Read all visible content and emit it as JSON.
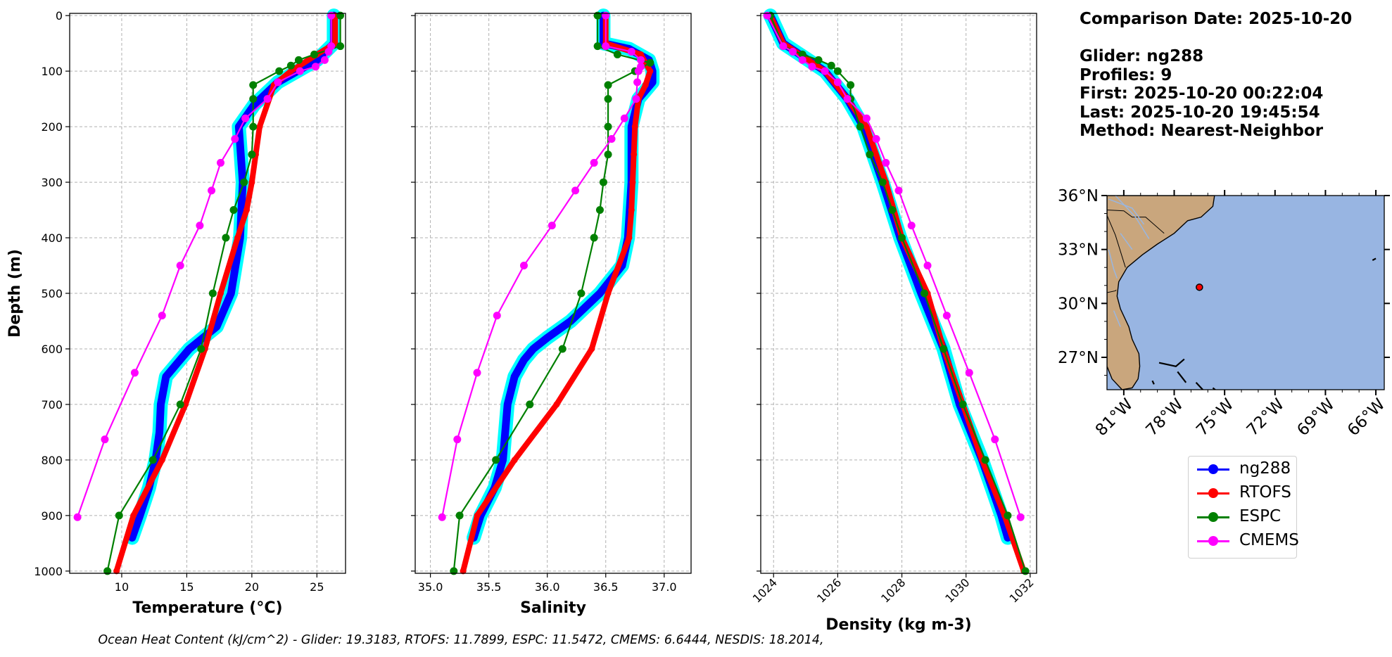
{
  "chart_data": [
    {
      "type": "line",
      "ylabel": "Depth (m)",
      "xlabel": "Temperature (°C)",
      "xlim": [
        6.0,
        27.2
      ],
      "ylim": [
        1000,
        0
      ],
      "xticks": [
        10,
        15,
        20,
        25
      ],
      "yticks": [
        0,
        100,
        200,
        300,
        400,
        500,
        600,
        700,
        800,
        900,
        1000
      ],
      "grid": true,
      "series": [
        {
          "name": "ng288",
          "color": "#0000ff",
          "y": [
            0,
            50,
            80,
            120,
            160,
            200,
            300,
            400,
            500,
            560,
            600,
            650,
            700,
            750,
            800,
            850,
            900,
            940
          ],
          "x": [
            26.3,
            26.3,
            25.0,
            22.0,
            20.2,
            19.0,
            19.3,
            19.1,
            18.4,
            17.3,
            15.2,
            13.4,
            13.0,
            12.9,
            12.6,
            12.1,
            11.4,
            10.8
          ]
        },
        {
          "name": "RTOFS",
          "color": "#ff0000",
          "y": [
            0,
            50,
            70,
            100,
            125,
            200,
            250,
            300,
            350,
            400,
            500,
            600,
            700,
            800,
            900,
            1000
          ],
          "x": [
            26.4,
            26.4,
            25.0,
            23.0,
            21.7,
            20.6,
            20.3,
            20.0,
            19.6,
            18.9,
            17.6,
            16.4,
            14.9,
            13.1,
            10.9,
            9.6
          ]
        },
        {
          "name": "ESPC",
          "color": "#008000",
          "y": [
            0,
            55,
            70,
            80,
            90,
            100,
            125,
            150,
            200,
            250,
            300,
            350,
            400,
            500,
            600,
            700,
            800,
            900,
            1000
          ],
          "x": [
            26.8,
            26.8,
            24.8,
            23.6,
            23.0,
            22.1,
            20.1,
            20.1,
            20.1,
            20.0,
            19.4,
            18.6,
            18.0,
            17.0,
            16.1,
            14.5,
            12.4,
            9.8,
            8.9
          ]
        },
        {
          "name": "CMEMS",
          "color": "#ff00ff",
          "y": [
            0,
            55,
            65,
            80,
            92,
            100,
            120,
            150,
            185,
            222,
            265,
            315,
            378,
            450,
            540,
            643,
            763,
            903
          ],
          "x": [
            26.1,
            26.1,
            25.9,
            25.6,
            24.9,
            23.7,
            22.0,
            21.2,
            19.5,
            18.7,
            17.6,
            16.9,
            16.0,
            14.5,
            13.1,
            11.0,
            8.7,
            6.6
          ]
        }
      ]
    },
    {
      "type": "line",
      "xlabel": "Salinity",
      "xlim": [
        34.87,
        37.23
      ],
      "ylim": [
        1000,
        0
      ],
      "xticks": [
        35.0,
        35.5,
        36.0,
        36.5,
        37.0
      ],
      "grid": true,
      "series": [
        {
          "name": "ng288",
          "color": "#0000ff",
          "y": [
            0,
            50,
            60,
            80,
            100,
            120,
            150,
            200,
            300,
            400,
            450,
            500,
            550,
            580,
            600,
            620,
            650,
            700,
            800,
            850,
            900,
            940
          ],
          "x": [
            36.48,
            36.48,
            36.7,
            36.87,
            36.9,
            36.9,
            36.78,
            36.72,
            36.72,
            36.69,
            36.64,
            36.45,
            36.2,
            36.0,
            35.88,
            35.8,
            35.72,
            35.66,
            35.62,
            35.55,
            35.43,
            35.37
          ]
        },
        {
          "name": "RTOFS",
          "color": "#ff0000",
          "y": [
            0,
            50,
            70,
            100,
            125,
            150,
            200,
            250,
            300,
            350,
            400,
            500,
            600,
            700,
            800,
            900,
            1000
          ],
          "x": [
            36.5,
            36.5,
            36.8,
            36.88,
            36.84,
            36.78,
            36.75,
            36.74,
            36.73,
            36.72,
            36.7,
            36.52,
            36.38,
            36.08,
            35.72,
            35.4,
            35.28
          ]
        },
        {
          "name": "ESPC",
          "color": "#008000",
          "y": [
            0,
            55,
            70,
            85,
            100,
            125,
            150,
            200,
            250,
            300,
            350,
            400,
            500,
            600,
            700,
            800,
            900,
            1000
          ],
          "x": [
            36.43,
            36.43,
            36.6,
            36.88,
            36.75,
            36.52,
            36.52,
            36.52,
            36.52,
            36.48,
            36.45,
            36.4,
            36.29,
            36.13,
            35.85,
            35.56,
            35.25,
            35.2
          ]
        },
        {
          "name": "CMEMS",
          "color": "#ff00ff",
          "y": [
            0,
            55,
            65,
            80,
            92,
            100,
            120,
            150,
            185,
            222,
            265,
            315,
            378,
            450,
            540,
            643,
            763,
            903
          ],
          "x": [
            36.5,
            36.5,
            36.72,
            36.8,
            36.8,
            36.78,
            36.77,
            36.76,
            36.66,
            36.55,
            36.4,
            36.24,
            36.04,
            35.8,
            35.57,
            35.4,
            35.23,
            35.1
          ]
        }
      ]
    },
    {
      "type": "line",
      "xlabel": "Density (kg m-3)",
      "xlim": [
        1023.6,
        1032.2
      ],
      "ylim": [
        1000,
        0
      ],
      "xticks": [
        1024,
        1026,
        1028,
        1030,
        1032
      ],
      "grid": true,
      "series": [
        {
          "name": "ng288",
          "color": "#0000ff",
          "y": [
            0,
            50,
            100,
            150,
            200,
            300,
            400,
            500,
            600,
            700,
            800,
            900,
            940
          ],
          "x": [
            1023.9,
            1024.3,
            1025.6,
            1026.3,
            1026.8,
            1027.4,
            1027.95,
            1028.6,
            1029.3,
            1029.8,
            1030.5,
            1031.1,
            1031.3
          ]
        },
        {
          "name": "RTOFS",
          "color": "#ff0000",
          "y": [
            0,
            50,
            100,
            150,
            200,
            300,
            400,
            500,
            600,
            700,
            800,
            900,
            1000
          ],
          "x": [
            1023.9,
            1024.3,
            1025.6,
            1026.3,
            1026.9,
            1027.5,
            1028.0,
            1028.8,
            1029.3,
            1029.9,
            1030.5,
            1031.2,
            1031.8
          ]
        },
        {
          "name": "ESPC",
          "color": "#008000",
          "y": [
            0,
            55,
            70,
            80,
            90,
            100,
            125,
            150,
            200,
            250,
            300,
            350,
            400,
            500,
            600,
            700,
            800,
            900,
            1000
          ],
          "x": [
            1023.9,
            1024.3,
            1024.9,
            1025.4,
            1025.8,
            1026.0,
            1026.4,
            1026.4,
            1026.7,
            1027.0,
            1027.4,
            1027.7,
            1028.0,
            1028.7,
            1029.3,
            1029.9,
            1030.6,
            1031.3,
            1031.85
          ]
        },
        {
          "name": "CMEMS",
          "color": "#ff00ff",
          "y": [
            0,
            55,
            65,
            80,
            92,
            100,
            120,
            150,
            185,
            222,
            265,
            315,
            378,
            450,
            540,
            643,
            763,
            903
          ],
          "x": [
            1023.8,
            1024.3,
            1024.6,
            1024.9,
            1025.2,
            1025.6,
            1026.0,
            1026.3,
            1026.9,
            1027.2,
            1027.5,
            1027.9,
            1028.3,
            1028.8,
            1029.4,
            1030.1,
            1030.9,
            1031.7
          ]
        }
      ]
    }
  ],
  "info": {
    "line1": "Comparison Date: 2025-10-20",
    "line2": "Glider: ng288",
    "line3": "Profiles: 9",
    "line4": "First: 2025-10-20 00:22:04",
    "line5": "Last: 2025-10-20 19:45:54",
    "line6": "Method: Nearest-Neighbor"
  },
  "map": {
    "lat_ticks": [
      "36°N",
      "33°N",
      "30°N",
      "27°N"
    ],
    "lon_ticks": [
      "81°W",
      "78°W",
      "75°W",
      "72°W",
      "69°W",
      "66°W"
    ],
    "lon_range": [
      -82.0,
      -65.5
    ],
    "lat_range": [
      25.2,
      36.0
    ],
    "glider_position": {
      "lon": -76.5,
      "lat": 30.9
    },
    "land_color": "#c9a67d",
    "ocean_color": "#98b5e2"
  },
  "legend": {
    "items": [
      {
        "label": "ng288",
        "color": "#0000ff"
      },
      {
        "label": "RTOFS",
        "color": "#ff0000"
      },
      {
        "label": "ESPC",
        "color": "#008000"
      },
      {
        "label": "CMEMS",
        "color": "#ff00ff"
      }
    ]
  },
  "caption": "Ocean Heat Content (kJ/cm^2) - Glider: 19.3183,  RTOFS: 11.7899,  ESPC: 11.5472,  CMEMS: 6.6444,  NESDIS: 18.2014,"
}
